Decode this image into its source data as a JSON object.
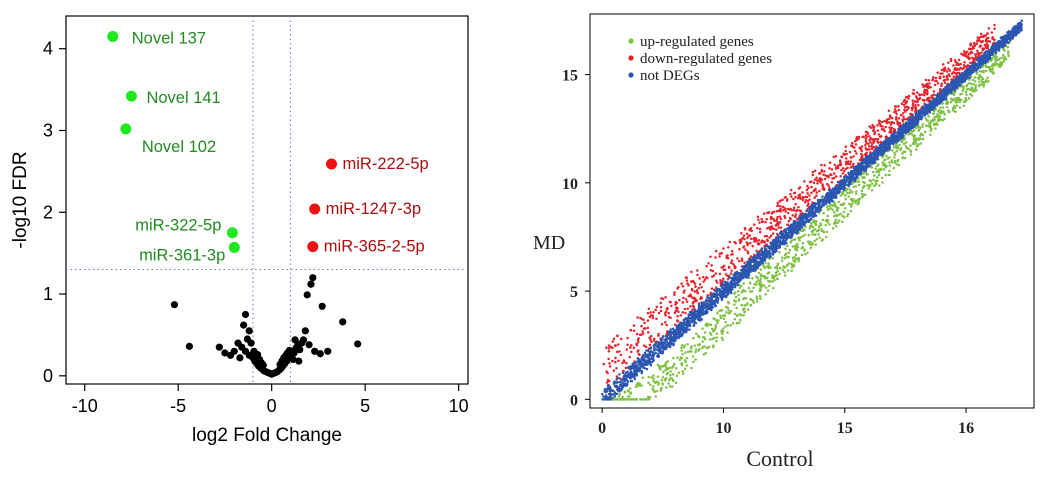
{
  "colors": {
    "green": "#1fe81f",
    "green_label": "#228b22",
    "red": "#ee1111",
    "red_label": "#aa0f0f",
    "black": "#000000",
    "guide": "#7777cc",
    "scatter_green": "#7ec143",
    "scatter_red": "#e8222b",
    "scatter_blue": "#2b56b0"
  },
  "chart_data": [
    {
      "type": "scatter",
      "title": "",
      "xlabel": "log2 Fold Change",
      "ylabel": "-log10 FDR",
      "xlim": [
        -11,
        10.5
      ],
      "ylim": [
        -0.1,
        4.4
      ],
      "xticks": [
        "-10",
        "-5",
        "0",
        "5",
        "10"
      ],
      "xtick_values": [
        -10,
        -5,
        0,
        5,
        10
      ],
      "yticks": [
        "0",
        "1",
        "2",
        "3",
        "4"
      ],
      "ytick_values": [
        0,
        1,
        2,
        3,
        4
      ],
      "thresholds": {
        "x": [
          -1,
          1
        ],
        "y": 1.3
      },
      "labeled_points": [
        {
          "label": "Novel 137",
          "x": -8.5,
          "y": 4.15,
          "group": "up"
        },
        {
          "label": "Novel 141",
          "x": -7.5,
          "y": 3.42,
          "group": "up"
        },
        {
          "label": "Novel 102",
          "x": -7.8,
          "y": 3.02,
          "group": "up"
        },
        {
          "label": "miR-322-5p",
          "x": -2.1,
          "y": 1.75,
          "group": "up"
        },
        {
          "label": "miR-361-3p",
          "x": -2.0,
          "y": 1.57,
          "group": "up"
        },
        {
          "label": "miR-222-5p",
          "x": 3.2,
          "y": 2.59,
          "group": "down"
        },
        {
          "label": "miR-1247-3p",
          "x": 2.3,
          "y": 2.04,
          "group": "down"
        },
        {
          "label": "miR-365-2-5p",
          "x": 2.2,
          "y": 1.58,
          "group": "down"
        }
      ],
      "other_points": [
        [
          -5.2,
          0.87
        ],
        [
          -4.4,
          0.36
        ],
        [
          3.8,
          0.66
        ],
        [
          4.6,
          0.39
        ],
        [
          2.7,
          0.85
        ],
        [
          2.2,
          1.2
        ],
        [
          2.1,
          1.12
        ],
        [
          1.9,
          0.99
        ],
        [
          1.8,
          0.55
        ],
        [
          -1.4,
          0.75
        ],
        [
          -1.5,
          0.62
        ],
        [
          -1.2,
          0.55
        ],
        [
          -2.8,
          0.35
        ],
        [
          -2.5,
          0.28
        ],
        [
          -2.2,
          0.25
        ],
        [
          -2.0,
          0.3
        ],
        [
          -1.8,
          0.4
        ],
        [
          -1.6,
          0.35
        ],
        [
          -1.4,
          0.3
        ],
        [
          -1.2,
          0.25
        ],
        [
          -1.0,
          0.22
        ],
        [
          -0.9,
          0.18
        ],
        [
          -0.8,
          0.15
        ],
        [
          -0.7,
          0.12
        ],
        [
          -0.6,
          0.1
        ],
        [
          -0.5,
          0.08
        ],
        [
          -0.4,
          0.06
        ],
        [
          -0.3,
          0.05
        ],
        [
          -0.2,
          0.04
        ],
        [
          -0.1,
          0.03
        ],
        [
          0.0,
          0.02
        ],
        [
          0.1,
          0.03
        ],
        [
          0.2,
          0.04
        ],
        [
          0.3,
          0.05
        ],
        [
          0.4,
          0.07
        ],
        [
          0.5,
          0.09
        ],
        [
          0.6,
          0.12
        ],
        [
          0.7,
          0.15
        ],
        [
          0.8,
          0.18
        ],
        [
          0.9,
          0.22
        ],
        [
          1.0,
          0.26
        ],
        [
          1.1,
          0.3
        ],
        [
          1.2,
          0.28
        ],
        [
          1.3,
          0.34
        ],
        [
          1.4,
          0.38
        ],
        [
          1.5,
          0.32
        ],
        [
          1.6,
          0.4
        ],
        [
          1.7,
          0.44
        ],
        [
          2.0,
          0.38
        ],
        [
          2.3,
          0.3
        ],
        [
          2.6,
          0.27
        ],
        [
          3.0,
          0.3
        ],
        [
          -1.1,
          0.4
        ],
        [
          -0.95,
          0.3
        ],
        [
          -0.85,
          0.24
        ],
        [
          -0.75,
          0.26
        ],
        [
          -0.65,
          0.2
        ],
        [
          -0.55,
          0.16
        ],
        [
          -0.45,
          0.13
        ],
        [
          0.45,
          0.14
        ],
        [
          0.55,
          0.18
        ],
        [
          0.65,
          0.22
        ],
        [
          0.75,
          0.25
        ],
        [
          0.85,
          0.28
        ],
        [
          0.95,
          0.31
        ],
        [
          1.15,
          0.2
        ],
        [
          -1.3,
          0.45
        ],
        [
          -1.7,
          0.22
        ],
        [
          1.25,
          0.44
        ],
        [
          1.45,
          0.18
        ]
      ]
    },
    {
      "type": "scatter",
      "title": "",
      "xlabel": "Control",
      "ylabel": "MD",
      "xlim": [
        -0.5,
        17.8
      ],
      "ylim": [
        -0.4,
        17.8
      ],
      "xticks": [
        "0",
        "10",
        "15",
        "16"
      ],
      "xtick_positions": [
        0,
        5,
        10,
        15
      ],
      "yticks": [
        "0",
        "5",
        "10",
        "15"
      ],
      "ytick_values": [
        0,
        5,
        10,
        15
      ],
      "legend": [
        {
          "label": "up-regulated genes",
          "color_key": "scatter_green"
        },
        {
          "label": "down-regulated genes",
          "color_key": "scatter_red"
        },
        {
          "label": "not DEGs",
          "color_key": "scatter_blue"
        }
      ],
      "legend_position": "top-left",
      "series": [
        {
          "name": "up-regulated genes",
          "band_offset": [
            -2.4,
            -0.3
          ],
          "x_range": [
            0.2,
            16.8
          ]
        },
        {
          "name": "down-regulated genes",
          "band_offset": [
            0.3,
            2.4
          ],
          "x_range": [
            0.0,
            16.2
          ]
        },
        {
          "name": "not DEGs",
          "band_offset": [
            -0.35,
            0.35
          ],
          "x_range": [
            0.0,
            17.3
          ]
        }
      ]
    }
  ]
}
